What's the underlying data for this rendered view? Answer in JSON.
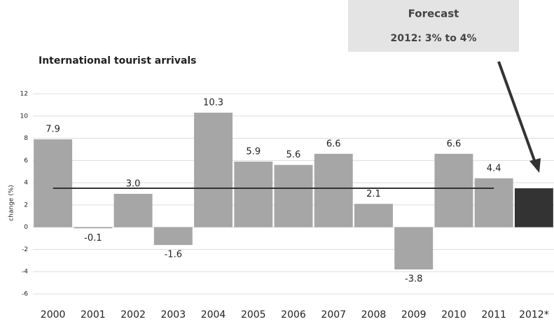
{
  "chart_data": {
    "type": "bar",
    "title": "International tourist arrivals",
    "y_label": "change (%)",
    "annotation": {
      "title": "Forecast",
      "text": "2012: 3% to 4%"
    },
    "categories": [
      "2000",
      "2001",
      "2002",
      "2003",
      "2004",
      "2005",
      "2006",
      "2007",
      "2008",
      "2009",
      "2010",
      "2011",
      "2012*"
    ],
    "values": [
      7.9,
      -0.1,
      3.0,
      -1.6,
      10.3,
      5.9,
      5.6,
      6.6,
      2.1,
      -3.8,
      6.6,
      4.4,
      3.5
    ],
    "value_labels": [
      "7.9",
      "-0.1",
      "3.0",
      "-1.6",
      "10.3",
      "5.9",
      "5.6",
      "6.6",
      "2.1",
      "-3.8",
      "6.6",
      "4.4",
      null
    ],
    "colors": [
      "#a6a6a6",
      "#a6a6a6",
      "#a6a6a6",
      "#a6a6a6",
      "#a6a6a6",
      "#a6a6a6",
      "#a6a6a6",
      "#a6a6a6",
      "#a6a6a6",
      "#a6a6a6",
      "#a6a6a6",
      "#a6a6a6",
      "#333333"
    ],
    "reference_line": 3.5,
    "ylim": [
      -6,
      12
    ],
    "yticks": [
      -6,
      -4,
      -2,
      0,
      2,
      4,
      6,
      8,
      10,
      12
    ],
    "grid": true
  }
}
